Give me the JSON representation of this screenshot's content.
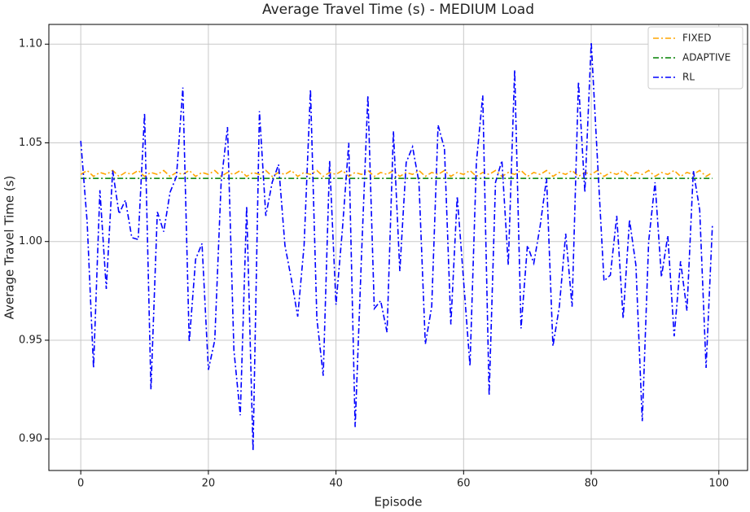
{
  "chart_data": {
    "type": "line",
    "title": "Average Travel Time (s) - MEDIUM Load",
    "xlabel": "Episode",
    "ylabel": "Average Travel Time (s)",
    "x": [
      0,
      1,
      2,
      3,
      4,
      5,
      6,
      7,
      8,
      9,
      10,
      11,
      12,
      13,
      14,
      15,
      16,
      17,
      18,
      19,
      20,
      21,
      22,
      23,
      24,
      25,
      26,
      27,
      28,
      29,
      30,
      31,
      32,
      33,
      34,
      35,
      36,
      37,
      38,
      39,
      40,
      41,
      42,
      43,
      44,
      45,
      46,
      47,
      48,
      49,
      50,
      51,
      52,
      53,
      54,
      55,
      56,
      57,
      58,
      59,
      60,
      61,
      62,
      63,
      64,
      65,
      66,
      67,
      68,
      69,
      70,
      71,
      72,
      73,
      74,
      75,
      76,
      77,
      78,
      79,
      80,
      81,
      82,
      83,
      84,
      85,
      86,
      87,
      88,
      89,
      90,
      91,
      92,
      93,
      94,
      95,
      96,
      97,
      98,
      99
    ],
    "series": [
      {
        "name": "FIXED",
        "color": "#ffa500",
        "values": [
          1.034,
          1.036,
          1.033,
          1.035,
          1.034,
          1.036,
          1.033,
          1.035,
          1.034,
          1.036,
          1.033,
          1.035,
          1.034,
          1.036,
          1.033,
          1.035,
          1.034,
          1.036,
          1.033,
          1.035,
          1.034,
          1.036,
          1.033,
          1.035,
          1.034,
          1.036,
          1.033,
          1.035,
          1.034,
          1.036,
          1.033,
          1.035,
          1.034,
          1.036,
          1.033,
          1.035,
          1.034,
          1.036,
          1.033,
          1.035,
          1.034,
          1.036,
          1.033,
          1.035,
          1.034,
          1.036,
          1.033,
          1.035,
          1.034,
          1.036,
          1.033,
          1.035,
          1.034,
          1.036,
          1.033,
          1.035,
          1.034,
          1.036,
          1.033,
          1.035,
          1.034,
          1.036,
          1.033,
          1.035,
          1.034,
          1.036,
          1.033,
          1.035,
          1.034,
          1.036,
          1.033,
          1.035,
          1.034,
          1.036,
          1.033,
          1.035,
          1.034,
          1.036,
          1.033,
          1.035,
          1.034,
          1.036,
          1.033,
          1.035,
          1.034,
          1.036,
          1.033,
          1.035,
          1.034,
          1.036,
          1.033,
          1.035,
          1.034,
          1.036,
          1.033,
          1.035,
          1.034,
          1.036,
          1.033,
          1.035
        ]
      },
      {
        "name": "ADAPTIVE",
        "color": "#008000",
        "values": [
          1.032,
          1.032,
          1.032,
          1.032,
          1.032,
          1.032,
          1.032,
          1.032,
          1.032,
          1.032,
          1.032,
          1.032,
          1.032,
          1.032,
          1.032,
          1.032,
          1.032,
          1.032,
          1.032,
          1.032,
          1.032,
          1.032,
          1.032,
          1.032,
          1.032,
          1.032,
          1.032,
          1.032,
          1.032,
          1.032,
          1.032,
          1.032,
          1.032,
          1.032,
          1.032,
          1.032,
          1.032,
          1.032,
          1.032,
          1.032,
          1.032,
          1.032,
          1.032,
          1.032,
          1.032,
          1.032,
          1.032,
          1.032,
          1.032,
          1.032,
          1.032,
          1.032,
          1.032,
          1.032,
          1.032,
          1.032,
          1.032,
          1.032,
          1.032,
          1.032,
          1.032,
          1.032,
          1.032,
          1.032,
          1.032,
          1.032,
          1.032,
          1.032,
          1.032,
          1.032,
          1.032,
          1.032,
          1.032,
          1.032,
          1.032,
          1.032,
          1.032,
          1.032,
          1.032,
          1.032,
          1.032,
          1.032,
          1.032,
          1.032,
          1.032,
          1.032,
          1.032,
          1.032,
          1.032,
          1.032,
          1.032,
          1.032,
          1.032,
          1.032,
          1.032,
          1.032,
          1.032,
          1.032,
          1.032,
          1.032
        ]
      },
      {
        "name": "RL",
        "color": "#0000ff",
        "values": [
          1.051,
          1.01,
          0.936,
          1.026,
          0.976,
          1.036,
          1.014,
          1.021,
          1.002,
          1.001,
          1.065,
          0.925,
          1.015,
          1.005,
          1.025,
          1.033,
          1.078,
          0.949,
          0.991,
          0.999,
          0.935,
          0.95,
          1.03,
          1.058,
          0.945,
          0.912,
          1.018,
          0.894,
          1.066,
          1.013,
          1.03,
          1.039,
          0.998,
          0.981,
          0.962,
          0.998,
          1.077,
          0.961,
          0.932,
          1.041,
          0.968,
          1.006,
          1.05,
          0.906,
          0.993,
          1.074,
          0.966,
          0.97,
          0.954,
          1.056,
          0.985,
          1.04,
          1.048,
          1.03,
          0.948,
          0.967,
          1.059,
          1.047,
          0.958,
          1.023,
          0.98,
          0.937,
          1.04,
          1.074,
          0.922,
          1.03,
          1.041,
          0.988,
          1.087,
          0.956,
          0.998,
          0.989,
          1.008,
          1.032,
          0.947,
          0.967,
          1.004,
          0.967,
          1.081,
          1.025,
          1.101,
          1.04,
          0.98,
          0.983,
          1.013,
          0.961,
          1.011,
          0.988,
          0.909,
          1.0,
          1.03,
          0.982,
          1.003,
          0.952,
          0.99,
          0.965,
          1.036,
          1.016,
          0.936,
          1.009
        ]
      }
    ],
    "xlim": [
      -5,
      104.5
    ],
    "ylim": [
      0.884,
      1.11
    ],
    "xticks": [
      0,
      20,
      40,
      60,
      80,
      100
    ],
    "yticks": [
      {
        "value": 0.9,
        "label": "0.90"
      },
      {
        "value": 0.95,
        "label": "0.95"
      },
      {
        "value": 1.0,
        "label": "1.00"
      },
      {
        "value": 1.05,
        "label": "1.05"
      },
      {
        "value": 1.1,
        "label": "1.10"
      }
    ],
    "grid": true,
    "legend": "upper right"
  }
}
